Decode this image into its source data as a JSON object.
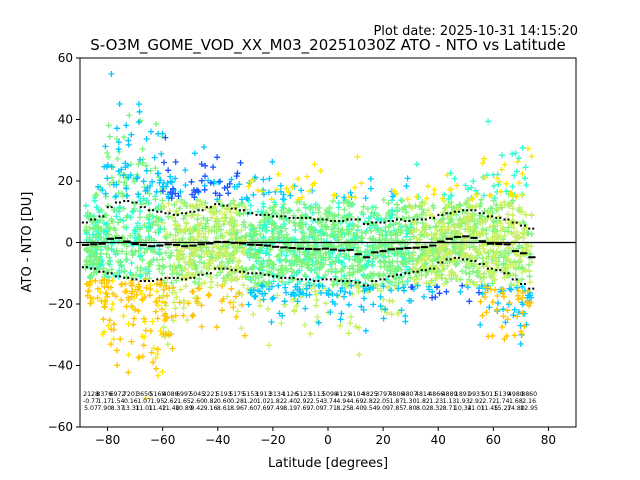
{
  "plot_date": "Plot date: 2025-10-31 14:15:20",
  "chart_data": {
    "type": "scatter",
    "title": "S-O3M_GOME_VOD_XX_M03_20251030Z ATO - NTO vs Latitude",
    "xlabel": "Latitude [degrees]",
    "ylabel": "ATO - NTO [DU]",
    "xlim": [
      -90,
      90
    ],
    "ylim": [
      -60,
      60
    ],
    "xticks": [
      "−80",
      "−60",
      "−40",
      "−20",
      "0",
      "20",
      "40",
      "60",
      "80"
    ],
    "yticks": [
      "−60",
      "−40",
      "−20",
      "0",
      "20",
      "40",
      "60"
    ],
    "zero_line": 0,
    "grid": false,
    "legend": "none",
    "band_colors": [
      "#1a53ff",
      "#00c8ff",
      "#2effd0",
      "#7cf57a",
      "#c8f060",
      "#ffe800",
      "#ffc400"
    ],
    "bin_centers": [
      -88,
      -85,
      -82,
      -79,
      -76,
      -73,
      -70,
      -67,
      -64,
      -61,
      -58,
      -55,
      -52,
      -49,
      -46,
      -43,
      -40,
      -37,
      -34,
      -31,
      -28,
      -25,
      -22,
      -19,
      -16,
      -13,
      -10,
      -7,
      -4,
      -1,
      2,
      5,
      8,
      11,
      14,
      17,
      20,
      23,
      26,
      29,
      32,
      35,
      38,
      41,
      44,
      47,
      50,
      53,
      56,
      59,
      62,
      65,
      68,
      71,
      74
    ],
    "bin_mean": [
      -0.8,
      -0.6,
      -0.4,
      1.2,
      1.5,
      0.3,
      -0.5,
      -0.8,
      -1.2,
      -1.0,
      -0.6,
      -0.8,
      -1.2,
      -1.0,
      -0.6,
      -0.3,
      0.2,
      0.2,
      -0.1,
      -0.3,
      -0.7,
      -0.8,
      -1.0,
      -1.4,
      -1.6,
      -1.8,
      -2.0,
      -2.1,
      -2.2,
      -2.0,
      -2.3,
      -2.6,
      -2.4,
      -3.8,
      -4.8,
      -3.2,
      -2.8,
      -2.2,
      -2.0,
      -1.8,
      -1.7,
      -1.5,
      -1.0,
      0.3,
      1.2,
      1.8,
      2.0,
      1.5,
      0.4,
      -0.4,
      -0.5,
      -0.6,
      -2.8,
      -3.5,
      -4.8
    ],
    "bin_plus_sd": [
      6.5,
      7.5,
      8.5,
      11.5,
      13.0,
      13.5,
      13.0,
      11.5,
      10.5,
      10.0,
      9.5,
      9.0,
      9.5,
      10.0,
      10.5,
      11.5,
      12.5,
      12.0,
      11.0,
      10.5,
      9.5,
      9.0,
      9.0,
      8.5,
      8.5,
      8.0,
      8.0,
      8.0,
      7.5,
      7.5,
      7.0,
      7.0,
      7.5,
      7.5,
      6.0,
      6.5,
      6.5,
      7.0,
      7.5,
      7.0,
      7.5,
      7.5,
      8.0,
      9.0,
      9.5,
      10.0,
      10.5,
      10.5,
      9.5,
      8.5,
      8.0,
      7.5,
      6.5,
      5.5,
      4.5
    ],
    "bin_minus_sd": [
      -8.0,
      -8.5,
      -9.5,
      -10.0,
      -11.0,
      -11.5,
      -12.0,
      -12.5,
      -12.5,
      -12.0,
      -11.5,
      -11.5,
      -12.0,
      -11.5,
      -10.5,
      -10.0,
      -8.5,
      -8.5,
      -9.0,
      -9.5,
      -10.0,
      -10.0,
      -10.5,
      -11.0,
      -11.5,
      -11.5,
      -12.0,
      -12.0,
      -12.5,
      -12.0,
      -12.0,
      -12.5,
      -12.5,
      -13.0,
      -14.0,
      -12.5,
      -12.0,
      -11.0,
      -10.5,
      -10.0,
      -9.5,
      -9.0,
      -8.5,
      -6.5,
      -5.5,
      -5.0,
      -5.5,
      -6.0,
      -7.0,
      -8.5,
      -9.0,
      -10.0,
      -12.0,
      -13.5,
      -15.0
    ],
    "bin_counts": [
      "2128",
      "8376",
      "6972",
      "7201",
      "3650",
      "5168",
      "4080",
      "6997",
      "5045",
      "2221",
      "5193",
      "5175",
      "5153",
      "1913",
      "3134",
      "1126",
      "5123",
      "5113",
      "5098",
      "4125",
      "4104",
      "4825",
      "3797",
      "4806",
      "4807",
      "4814",
      "4866",
      "4889",
      "1891",
      "9933",
      "5011",
      "5139",
      "4980",
      "8860"
    ],
    "bin_means_text": [
      "-0.77",
      "1.17",
      "1.54",
      "0.16",
      "1.07",
      "1.95",
      "2.62",
      "1.65",
      "2.60",
      "0.82",
      "0.60",
      "0.28",
      "1.20",
      "1.02",
      "1.82",
      "2.40",
      "2.92",
      "2.54",
      "3.74",
      "4.94",
      "4.69",
      "2.82",
      "2.05",
      "1.87",
      "1.30",
      "1.82",
      "1.23",
      "1.13",
      "1.93",
      "2.92",
      "2.72",
      "1.74",
      "1.68",
      "2.16"
    ],
    "bin_sd_text": [
      "5.07",
      "7.90",
      "8.37",
      "13.31",
      "11.01",
      "11.42",
      "11.40",
      "10.89",
      "9.42",
      "9.16",
      "8.61",
      "8.96",
      "7.60",
      "7.69",
      "7.49",
      "8.19",
      "7.69",
      "7.09",
      "7.71",
      "8.25",
      "8.40",
      "9.54",
      "9.09",
      "7.85",
      "7.80",
      "8.02",
      "8.32",
      "8.71",
      "10.34",
      "11.01",
      "11.45",
      "15.27",
      "14.80",
      "12.95"
    ]
  }
}
